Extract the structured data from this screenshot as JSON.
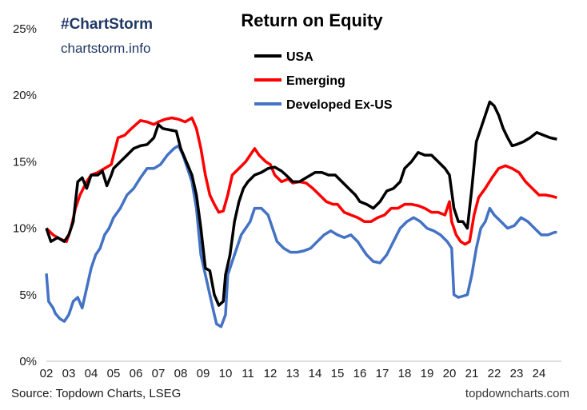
{
  "brand": {
    "hashtag": "#ChartStorm",
    "site": "chartstorm.info"
  },
  "footer": {
    "source": "Source: Topdown Charts, LSEG",
    "site": "topdowncharts.com"
  },
  "chart_data": {
    "type": "line",
    "title": "Return on Equity",
    "xlabel": "",
    "ylabel": "",
    "x_ticks": [
      "02",
      "03",
      "04",
      "05",
      "06",
      "07",
      "08",
      "09",
      "10",
      "11",
      "12",
      "13",
      "14",
      "15",
      "16",
      "17",
      "18",
      "19",
      "20",
      "21",
      "22",
      "23",
      "24"
    ],
    "y_ticks": [
      "0%",
      "5%",
      "10%",
      "15%",
      "20%",
      "25%"
    ],
    "xlim": [
      2002,
      2025
    ],
    "ylim": [
      0,
      25
    ],
    "grid": false,
    "legend": "top-center",
    "series": [
      {
        "name": "USA",
        "color": "#000000",
        "points": [
          [
            2002.0,
            10.0
          ],
          [
            2002.2,
            9.0
          ],
          [
            2002.5,
            9.3
          ],
          [
            2002.8,
            9.0
          ],
          [
            2003.0,
            9.5
          ],
          [
            2003.2,
            10.5
          ],
          [
            2003.4,
            13.5
          ],
          [
            2003.6,
            13.8
          ],
          [
            2003.8,
            13.0
          ],
          [
            2004.0,
            14.0
          ],
          [
            2004.3,
            14.0
          ],
          [
            2004.5,
            14.3
          ],
          [
            2004.7,
            13.2
          ],
          [
            2004.9,
            14.0
          ],
          [
            2005.0,
            14.5
          ],
          [
            2005.3,
            15.0
          ],
          [
            2005.6,
            15.5
          ],
          [
            2005.9,
            16.0
          ],
          [
            2006.2,
            16.2
          ],
          [
            2006.5,
            16.3
          ],
          [
            2006.8,
            16.8
          ],
          [
            2007.0,
            17.8
          ],
          [
            2007.2,
            17.5
          ],
          [
            2007.5,
            17.4
          ],
          [
            2007.8,
            17.3
          ],
          [
            2008.0,
            16.0
          ],
          [
            2008.3,
            14.8
          ],
          [
            2008.5,
            14.0
          ],
          [
            2008.7,
            12.5
          ],
          [
            2008.9,
            10.0
          ],
          [
            2009.1,
            7.0
          ],
          [
            2009.3,
            6.8
          ],
          [
            2009.5,
            5.0
          ],
          [
            2009.7,
            4.2
          ],
          [
            2009.9,
            4.5
          ],
          [
            2010.0,
            6.5
          ],
          [
            2010.2,
            8.0
          ],
          [
            2010.4,
            10.5
          ],
          [
            2010.6,
            12.0
          ],
          [
            2010.8,
            13.0
          ],
          [
            2011.0,
            13.5
          ],
          [
            2011.3,
            14.0
          ],
          [
            2011.6,
            14.2
          ],
          [
            2011.9,
            14.5
          ],
          [
            2012.2,
            14.6
          ],
          [
            2012.5,
            14.3
          ],
          [
            2012.7,
            14.0
          ],
          [
            2013.0,
            13.5
          ],
          [
            2013.3,
            13.5
          ],
          [
            2013.6,
            13.8
          ],
          [
            2014.0,
            14.2
          ],
          [
            2014.3,
            14.2
          ],
          [
            2014.6,
            14.0
          ],
          [
            2014.9,
            14.0
          ],
          [
            2015.2,
            13.5
          ],
          [
            2015.5,
            13.0
          ],
          [
            2015.8,
            12.5
          ],
          [
            2016.0,
            12.0
          ],
          [
            2016.3,
            11.8
          ],
          [
            2016.6,
            11.5
          ],
          [
            2016.9,
            12.0
          ],
          [
            2017.2,
            12.8
          ],
          [
            2017.5,
            13.0
          ],
          [
            2017.8,
            13.5
          ],
          [
            2018.0,
            14.5
          ],
          [
            2018.3,
            15.0
          ],
          [
            2018.6,
            15.7
          ],
          [
            2018.9,
            15.5
          ],
          [
            2019.2,
            15.5
          ],
          [
            2019.5,
            15.0
          ],
          [
            2019.8,
            14.5
          ],
          [
            2020.0,
            14.0
          ],
          [
            2020.2,
            11.5
          ],
          [
            2020.4,
            10.5
          ],
          [
            2020.6,
            10.5
          ],
          [
            2020.8,
            10.0
          ],
          [
            2021.0,
            13.0
          ],
          [
            2021.2,
            16.5
          ],
          [
            2021.5,
            18.0
          ],
          [
            2021.8,
            19.5
          ],
          [
            2022.0,
            19.2
          ],
          [
            2022.2,
            18.5
          ],
          [
            2022.4,
            17.5
          ],
          [
            2022.6,
            16.8
          ],
          [
            2022.8,
            16.2
          ],
          [
            2023.0,
            16.3
          ],
          [
            2023.3,
            16.5
          ],
          [
            2023.6,
            16.8
          ],
          [
            2023.9,
            17.2
          ],
          [
            2024.2,
            17.0
          ],
          [
            2024.5,
            16.8
          ],
          [
            2024.8,
            16.7
          ]
        ]
      },
      {
        "name": "Emerging",
        "color": "#ff0000",
        "points": [
          [
            2002.0,
            10.0
          ],
          [
            2002.3,
            9.5
          ],
          [
            2002.6,
            9.2
          ],
          [
            2002.9,
            9.0
          ],
          [
            2003.1,
            10.0
          ],
          [
            2003.3,
            11.5
          ],
          [
            2003.5,
            12.5
          ],
          [
            2003.8,
            13.5
          ],
          [
            2004.0,
            14.0
          ],
          [
            2004.3,
            14.2
          ],
          [
            2004.6,
            14.5
          ],
          [
            2004.9,
            14.8
          ],
          [
            2005.0,
            15.5
          ],
          [
            2005.2,
            16.8
          ],
          [
            2005.5,
            17.0
          ],
          [
            2005.8,
            17.5
          ],
          [
            2006.0,
            17.8
          ],
          [
            2006.2,
            18.1
          ],
          [
            2006.5,
            18.0
          ],
          [
            2006.8,
            17.8
          ],
          [
            2007.0,
            18.0
          ],
          [
            2007.3,
            18.2
          ],
          [
            2007.6,
            18.3
          ],
          [
            2007.9,
            18.2
          ],
          [
            2008.2,
            18.0
          ],
          [
            2008.5,
            18.3
          ],
          [
            2008.7,
            17.5
          ],
          [
            2008.9,
            16.0
          ],
          [
            2009.1,
            14.0
          ],
          [
            2009.3,
            12.5
          ],
          [
            2009.5,
            11.8
          ],
          [
            2009.7,
            11.2
          ],
          [
            2009.9,
            11.3
          ],
          [
            2010.1,
            12.5
          ],
          [
            2010.3,
            14.0
          ],
          [
            2010.6,
            14.5
          ],
          [
            2010.9,
            15.0
          ],
          [
            2011.1,
            15.5
          ],
          [
            2011.3,
            16.0
          ],
          [
            2011.5,
            15.5
          ],
          [
            2011.8,
            15.0
          ],
          [
            2012.0,
            14.8
          ],
          [
            2012.2,
            14.0
          ],
          [
            2012.5,
            13.5
          ],
          [
            2012.8,
            13.7
          ],
          [
            2013.0,
            13.4
          ],
          [
            2013.3,
            13.5
          ],
          [
            2013.6,
            13.4
          ],
          [
            2013.9,
            13.0
          ],
          [
            2014.2,
            12.5
          ],
          [
            2014.5,
            12.0
          ],
          [
            2014.8,
            11.8
          ],
          [
            2015.0,
            11.8
          ],
          [
            2015.3,
            11.2
          ],
          [
            2015.6,
            11.0
          ],
          [
            2015.9,
            10.8
          ],
          [
            2016.2,
            10.5
          ],
          [
            2016.5,
            10.5
          ],
          [
            2016.8,
            10.8
          ],
          [
            2017.1,
            11.0
          ],
          [
            2017.4,
            11.5
          ],
          [
            2017.7,
            11.5
          ],
          [
            2018.0,
            11.8
          ],
          [
            2018.3,
            11.8
          ],
          [
            2018.6,
            11.7
          ],
          [
            2018.9,
            11.5
          ],
          [
            2019.2,
            11.2
          ],
          [
            2019.5,
            11.2
          ],
          [
            2019.8,
            11.0
          ],
          [
            2020.0,
            12.0
          ],
          [
            2020.1,
            10.5
          ],
          [
            2020.3,
            9.5
          ],
          [
            2020.5,
            9.0
          ],
          [
            2020.7,
            8.8
          ],
          [
            2020.9,
            9.0
          ],
          [
            2021.1,
            11.0
          ],
          [
            2021.3,
            12.3
          ],
          [
            2021.6,
            13.0
          ],
          [
            2021.9,
            13.8
          ],
          [
            2022.2,
            14.5
          ],
          [
            2022.5,
            14.7
          ],
          [
            2022.8,
            14.5
          ],
          [
            2023.1,
            14.2
          ],
          [
            2023.4,
            13.5
          ],
          [
            2023.7,
            13.0
          ],
          [
            2024.0,
            12.5
          ],
          [
            2024.3,
            12.5
          ],
          [
            2024.6,
            12.4
          ],
          [
            2024.8,
            12.3
          ]
        ]
      },
      {
        "name": "Developed Ex-US",
        "color": "#4472c4",
        "points": [
          [
            2002.0,
            6.6
          ],
          [
            2002.1,
            4.5
          ],
          [
            2002.3,
            4.0
          ],
          [
            2002.4,
            3.6
          ],
          [
            2002.6,
            3.2
          ],
          [
            2002.8,
            3.0
          ],
          [
            2003.0,
            3.5
          ],
          [
            2003.2,
            4.5
          ],
          [
            2003.4,
            4.8
          ],
          [
            2003.6,
            4.0
          ],
          [
            2003.8,
            5.5
          ],
          [
            2004.0,
            7.0
          ],
          [
            2004.2,
            8.0
          ],
          [
            2004.4,
            8.5
          ],
          [
            2004.6,
            9.5
          ],
          [
            2004.8,
            10.0
          ],
          [
            2005.0,
            10.8
          ],
          [
            2005.3,
            11.5
          ],
          [
            2005.6,
            12.5
          ],
          [
            2005.9,
            13.0
          ],
          [
            2006.2,
            13.8
          ],
          [
            2006.5,
            14.5
          ],
          [
            2006.8,
            14.5
          ],
          [
            2007.1,
            14.8
          ],
          [
            2007.4,
            15.5
          ],
          [
            2007.7,
            16.0
          ],
          [
            2007.9,
            16.2
          ],
          [
            2008.1,
            15.5
          ],
          [
            2008.3,
            14.5
          ],
          [
            2008.5,
            13.5
          ],
          [
            2008.7,
            11.5
          ],
          [
            2008.9,
            8.0
          ],
          [
            2009.1,
            6.5
          ],
          [
            2009.3,
            5.0
          ],
          [
            2009.5,
            3.5
          ],
          [
            2009.6,
            2.8
          ],
          [
            2009.8,
            2.6
          ],
          [
            2010.0,
            3.5
          ],
          [
            2010.1,
            6.5
          ],
          [
            2010.3,
            7.5
          ],
          [
            2010.5,
            8.5
          ],
          [
            2010.7,
            9.5
          ],
          [
            2010.9,
            10.0
          ],
          [
            2011.1,
            10.5
          ],
          [
            2011.3,
            11.5
          ],
          [
            2011.6,
            11.5
          ],
          [
            2011.9,
            11.0
          ],
          [
            2012.1,
            10.0
          ],
          [
            2012.3,
            9.0
          ],
          [
            2012.6,
            8.5
          ],
          [
            2012.9,
            8.2
          ],
          [
            2013.2,
            8.2
          ],
          [
            2013.5,
            8.3
          ],
          [
            2013.8,
            8.5
          ],
          [
            2014.1,
            9.0
          ],
          [
            2014.4,
            9.5
          ],
          [
            2014.7,
            9.8
          ],
          [
            2015.0,
            9.5
          ],
          [
            2015.3,
            9.3
          ],
          [
            2015.6,
            9.5
          ],
          [
            2015.9,
            9.0
          ],
          [
            2016.1,
            8.5
          ],
          [
            2016.3,
            8.0
          ],
          [
            2016.6,
            7.5
          ],
          [
            2016.9,
            7.4
          ],
          [
            2017.2,
            8.0
          ],
          [
            2017.5,
            9.0
          ],
          [
            2017.8,
            10.0
          ],
          [
            2018.1,
            10.5
          ],
          [
            2018.4,
            10.8
          ],
          [
            2018.7,
            10.5
          ],
          [
            2019.0,
            10.0
          ],
          [
            2019.3,
            9.8
          ],
          [
            2019.6,
            9.5
          ],
          [
            2019.9,
            9.0
          ],
          [
            2020.1,
            8.5
          ],
          [
            2020.2,
            5.0
          ],
          [
            2020.4,
            4.8
          ],
          [
            2020.6,
            4.9
          ],
          [
            2020.8,
            5.0
          ],
          [
            2021.0,
            6.5
          ],
          [
            2021.2,
            8.5
          ],
          [
            2021.4,
            10.0
          ],
          [
            2021.6,
            10.5
          ],
          [
            2021.8,
            11.5
          ],
          [
            2022.0,
            11.0
          ],
          [
            2022.3,
            10.5
          ],
          [
            2022.6,
            10.0
          ],
          [
            2022.9,
            10.2
          ],
          [
            2023.2,
            10.8
          ],
          [
            2023.5,
            10.5
          ],
          [
            2023.8,
            10.0
          ],
          [
            2024.1,
            9.5
          ],
          [
            2024.4,
            9.5
          ],
          [
            2024.7,
            9.7
          ],
          [
            2024.8,
            9.7
          ]
        ]
      }
    ]
  }
}
